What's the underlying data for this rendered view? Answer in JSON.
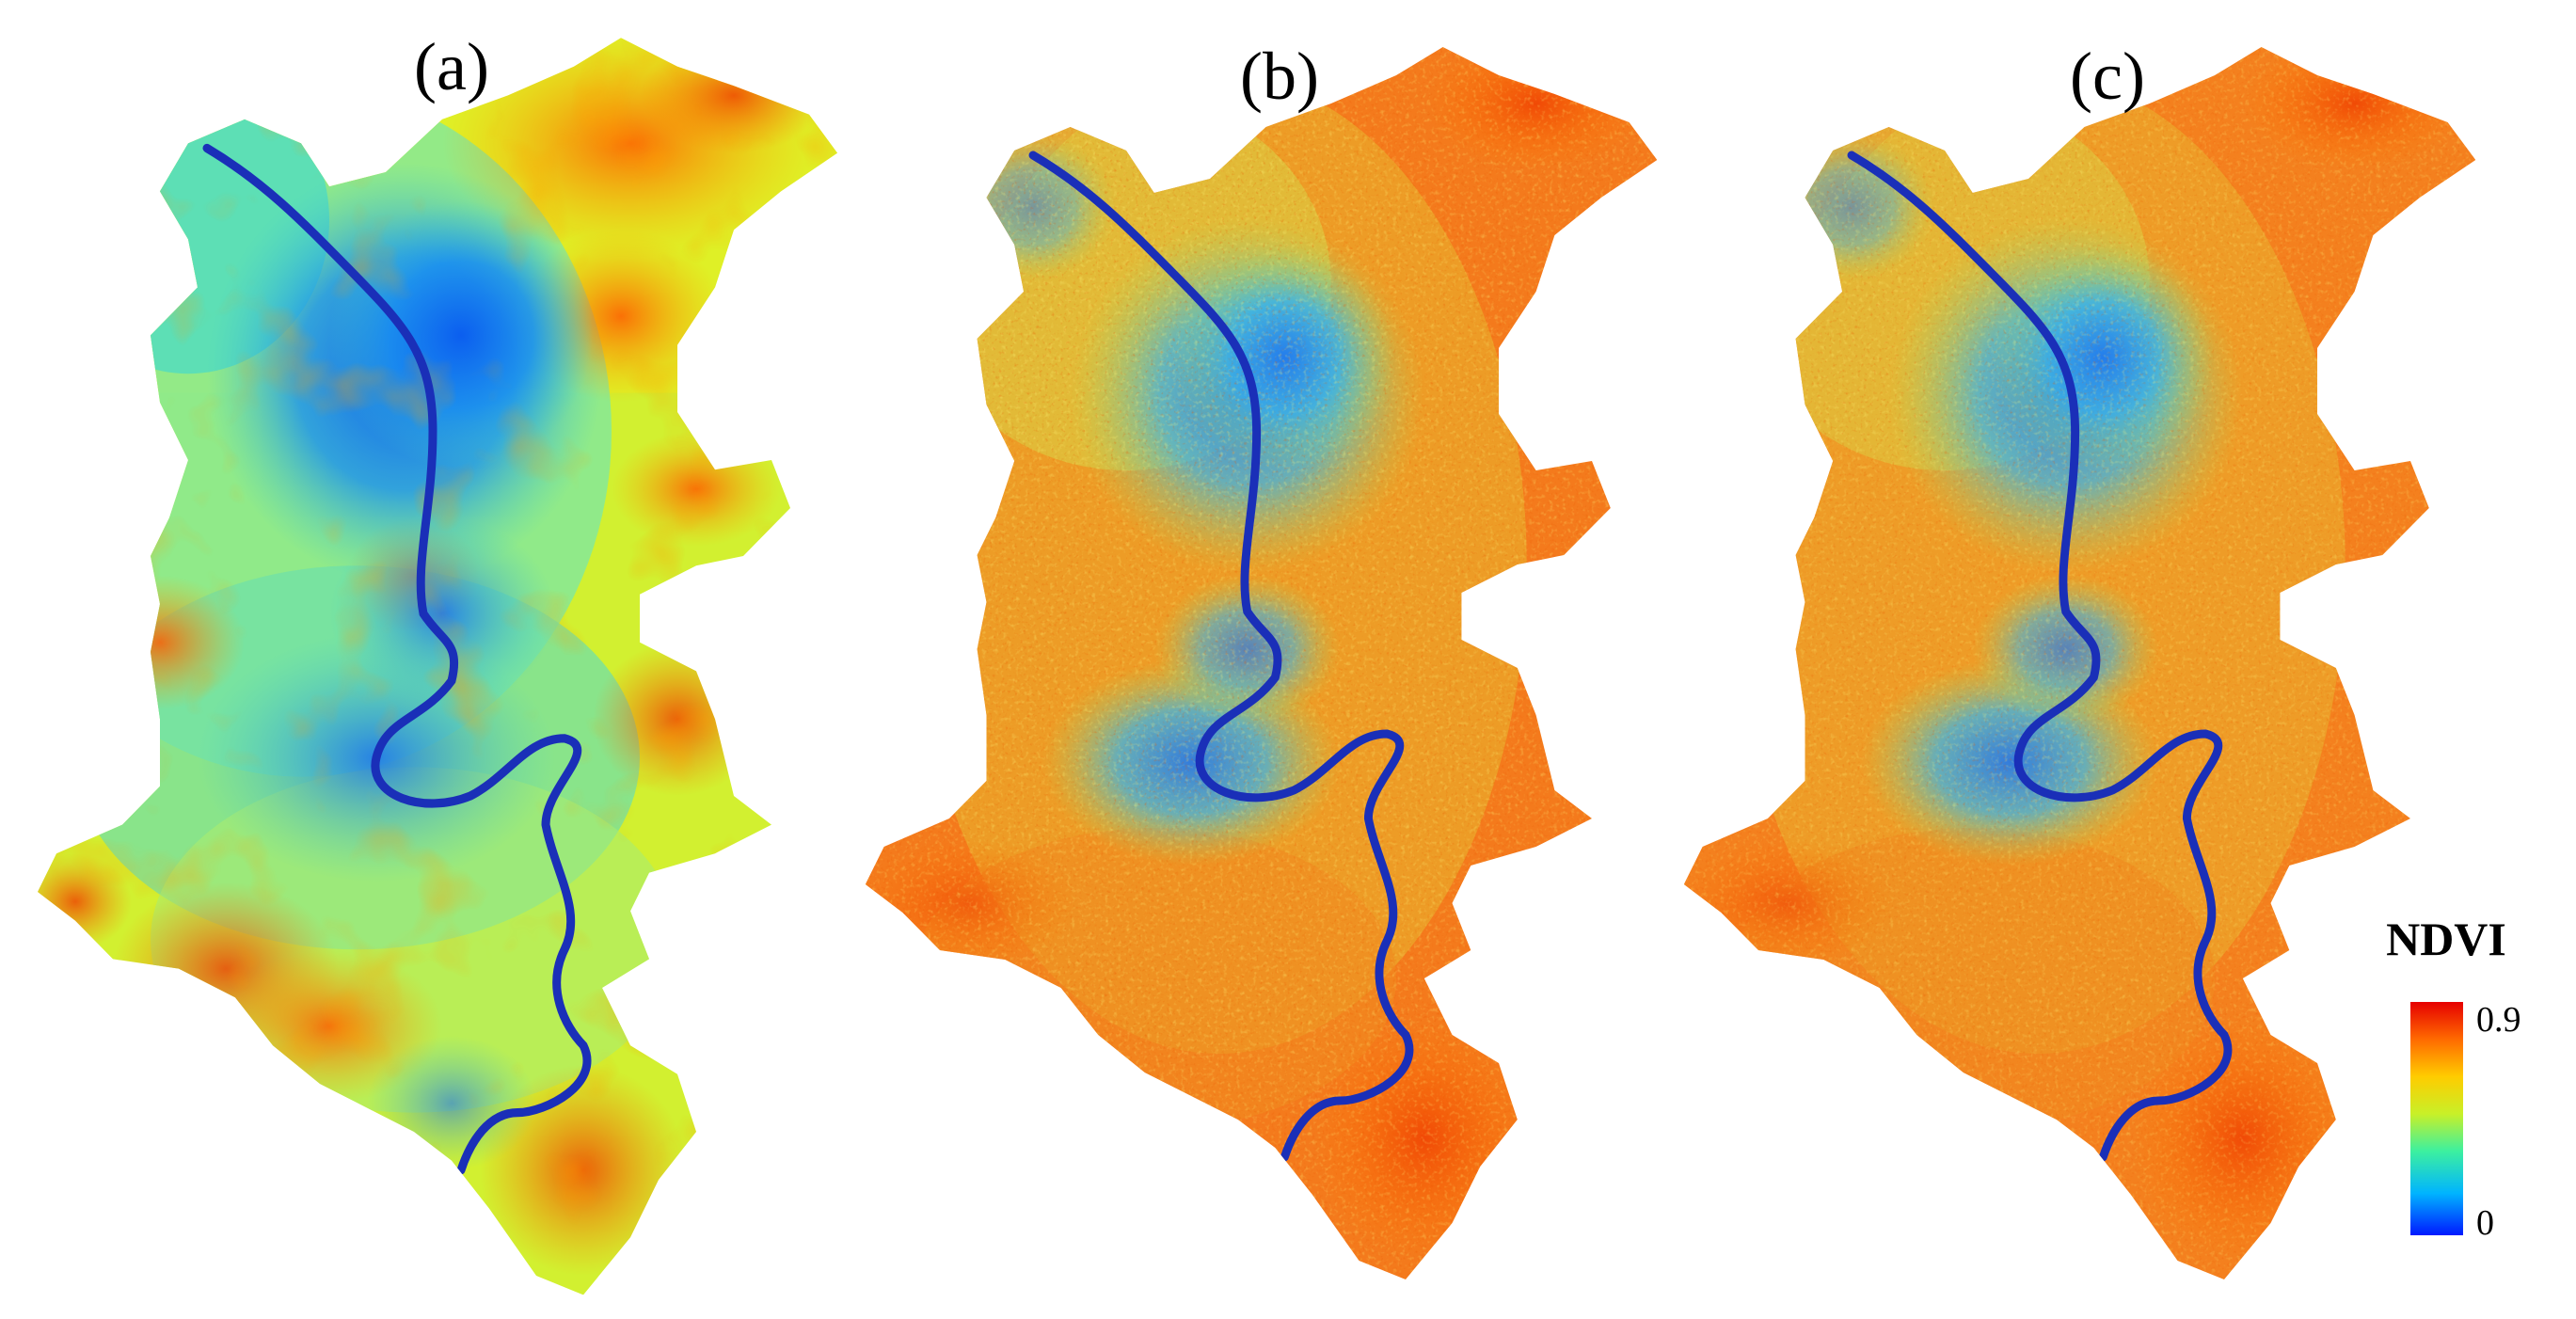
{
  "panels": [
    {
      "label": "(a)"
    },
    {
      "label": "(b)"
    },
    {
      "label": "(c)"
    }
  ],
  "legend": {
    "title": "NDVI",
    "max_label": "0.9",
    "min_label": "0",
    "min_value": 0,
    "max_value": 0.9,
    "gradient_colors": [
      "#0019ff",
      "#00b4ff",
      "#3cf0a0",
      "#c8f028",
      "#ffcc00",
      "#ff6a00",
      "#e60000"
    ]
  },
  "colors": {
    "river": "#1a2fb8",
    "background": "#ffffff"
  }
}
